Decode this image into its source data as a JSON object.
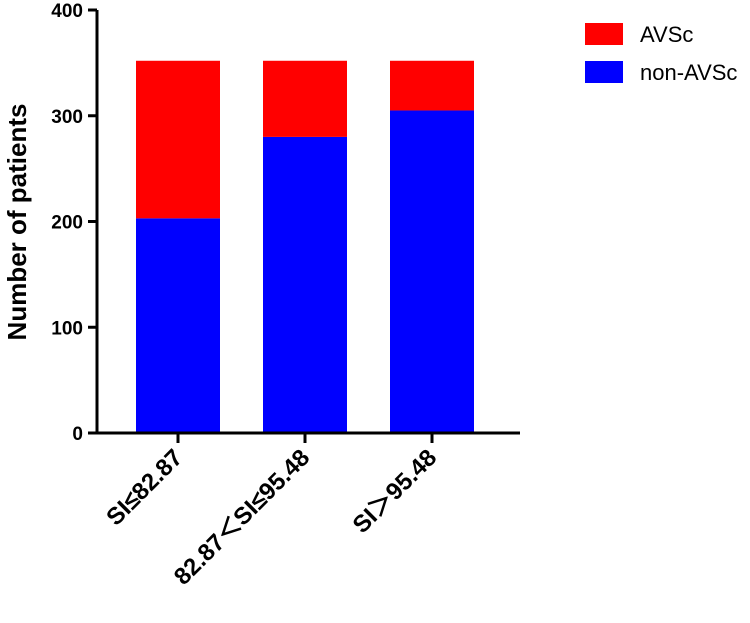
{
  "chart_data": {
    "type": "bar",
    "stacked": true,
    "categories": [
      "SI≤82.87",
      "82.87＜SI≤95.48",
      "SI＞95.48"
    ],
    "series": [
      {
        "name": "non-AVSc",
        "color": "#0000ff",
        "values": [
          203,
          280,
          305
        ]
      },
      {
        "name": "AVSc",
        "color": "#ff0000",
        "values": [
          149,
          72,
          47
        ]
      }
    ],
    "title": "",
    "xlabel": "",
    "ylabel": "Number of patients",
    "ylim": [
      0,
      400
    ],
    "yticks": [
      0,
      100,
      200,
      300,
      400
    ],
    "legend": {
      "position": "top-right",
      "entries": [
        "AVSc",
        "non-AVSc"
      ]
    },
    "grid": false
  }
}
